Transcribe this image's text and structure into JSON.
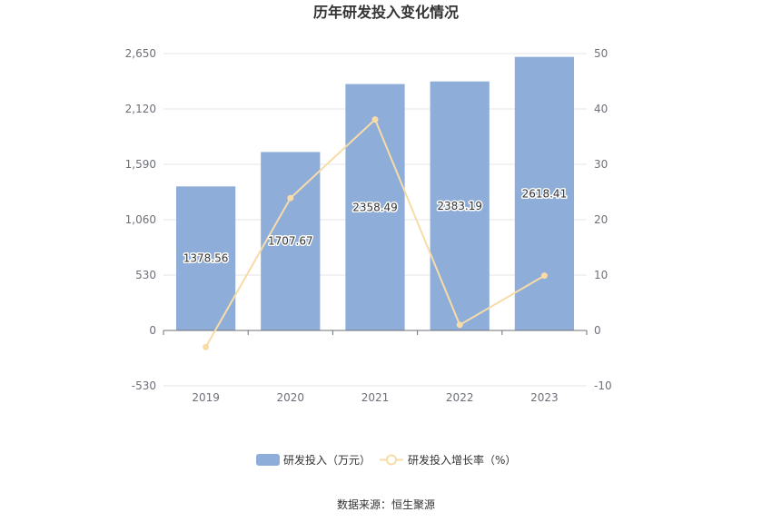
{
  "chart_data": {
    "type": "bar",
    "title": "历年研发投入变化情况",
    "categories": [
      "2019",
      "2020",
      "2021",
      "2022",
      "2023"
    ],
    "series": [
      {
        "name": "研发投入（万元）",
        "type": "bar",
        "axis": "left",
        "color": "#8eadd9",
        "values": [
          1378.56,
          1707.67,
          2358.49,
          2383.19,
          2618.41
        ],
        "labels": [
          "1378.56",
          "1707.67",
          "2358.49",
          "2383.19",
          "2618.41"
        ]
      },
      {
        "name": "研发投入增长率（%）",
        "type": "line",
        "axis": "right",
        "color": "#f7dca8",
        "values": [
          -3,
          23.9,
          38.1,
          1.0,
          9.9
        ]
      }
    ],
    "y_left": {
      "min": -530,
      "max": 2650,
      "ticks": [
        "2,650",
        "2,120",
        "1,590",
        "1,060",
        "530",
        "0",
        "-530"
      ]
    },
    "y_right": {
      "min": -10,
      "max": 50,
      "ticks": [
        "50",
        "40",
        "30",
        "20",
        "10",
        "0",
        "-10"
      ]
    },
    "grid": true,
    "legend_position": "bottom",
    "source": "数据来源：恒生聚源"
  }
}
